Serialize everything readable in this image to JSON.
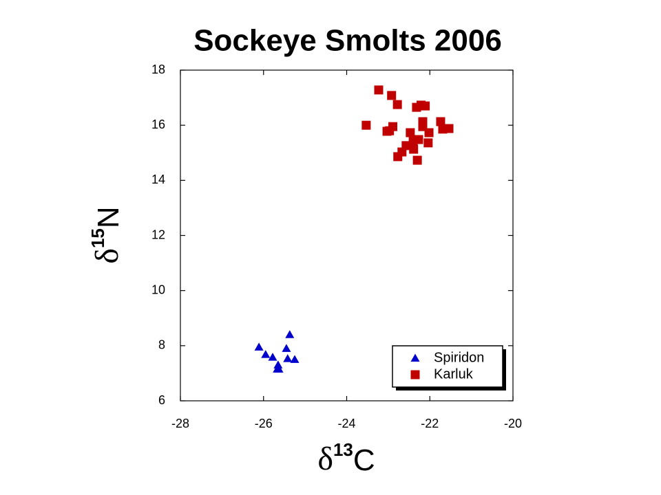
{
  "chart_data": {
    "type": "scatter",
    "title": "Sockeye Smolts 2006",
    "x_label": [
      "δ",
      "13",
      "C"
    ],
    "y_label": [
      "δ",
      "15",
      "N"
    ],
    "xlim": [
      -28,
      -20
    ],
    "xticks": [
      -28,
      -26,
      -24,
      -22,
      -20
    ],
    "ylim": [
      6,
      18
    ],
    "yticks": [
      6,
      8,
      10,
      12,
      14,
      16,
      18
    ],
    "legend": "lower right",
    "series": [
      {
        "name": "Spiridon",
        "color": "#0000cc",
        "marker": "triangle",
        "x": [
          -26.11,
          -25.95,
          -25.78,
          -25.65,
          -25.67,
          -25.63,
          -25.45,
          -25.37,
          -25.42,
          -25.25
        ],
        "values": [
          7.95,
          7.68,
          7.58,
          7.3,
          7.15,
          7.15,
          7.9,
          8.4,
          7.53,
          7.5
        ]
      },
      {
        "name": "Karluk",
        "color": "#c00000",
        "marker": "square",
        "x": [
          -23.23,
          -22.92,
          -22.78,
          -23.53,
          -22.89,
          -23.03,
          -22.97,
          -22.32,
          -22.21,
          -22.11,
          -22.17,
          -22.17,
          -21.74,
          -21.69,
          -21.54,
          -22.02,
          -22.47,
          -22.04,
          -22.27,
          -22.4,
          -22.57,
          -22.39,
          -22.67,
          -22.77,
          -22.3
        ],
        "values": [
          17.28,
          17.08,
          16.75,
          16.0,
          15.95,
          15.78,
          15.8,
          16.65,
          16.73,
          16.7,
          16.13,
          15.95,
          16.13,
          15.86,
          15.88,
          15.73,
          15.73,
          15.36,
          15.48,
          15.41,
          15.26,
          15.13,
          15.03,
          14.86,
          14.73
        ]
      }
    ]
  }
}
